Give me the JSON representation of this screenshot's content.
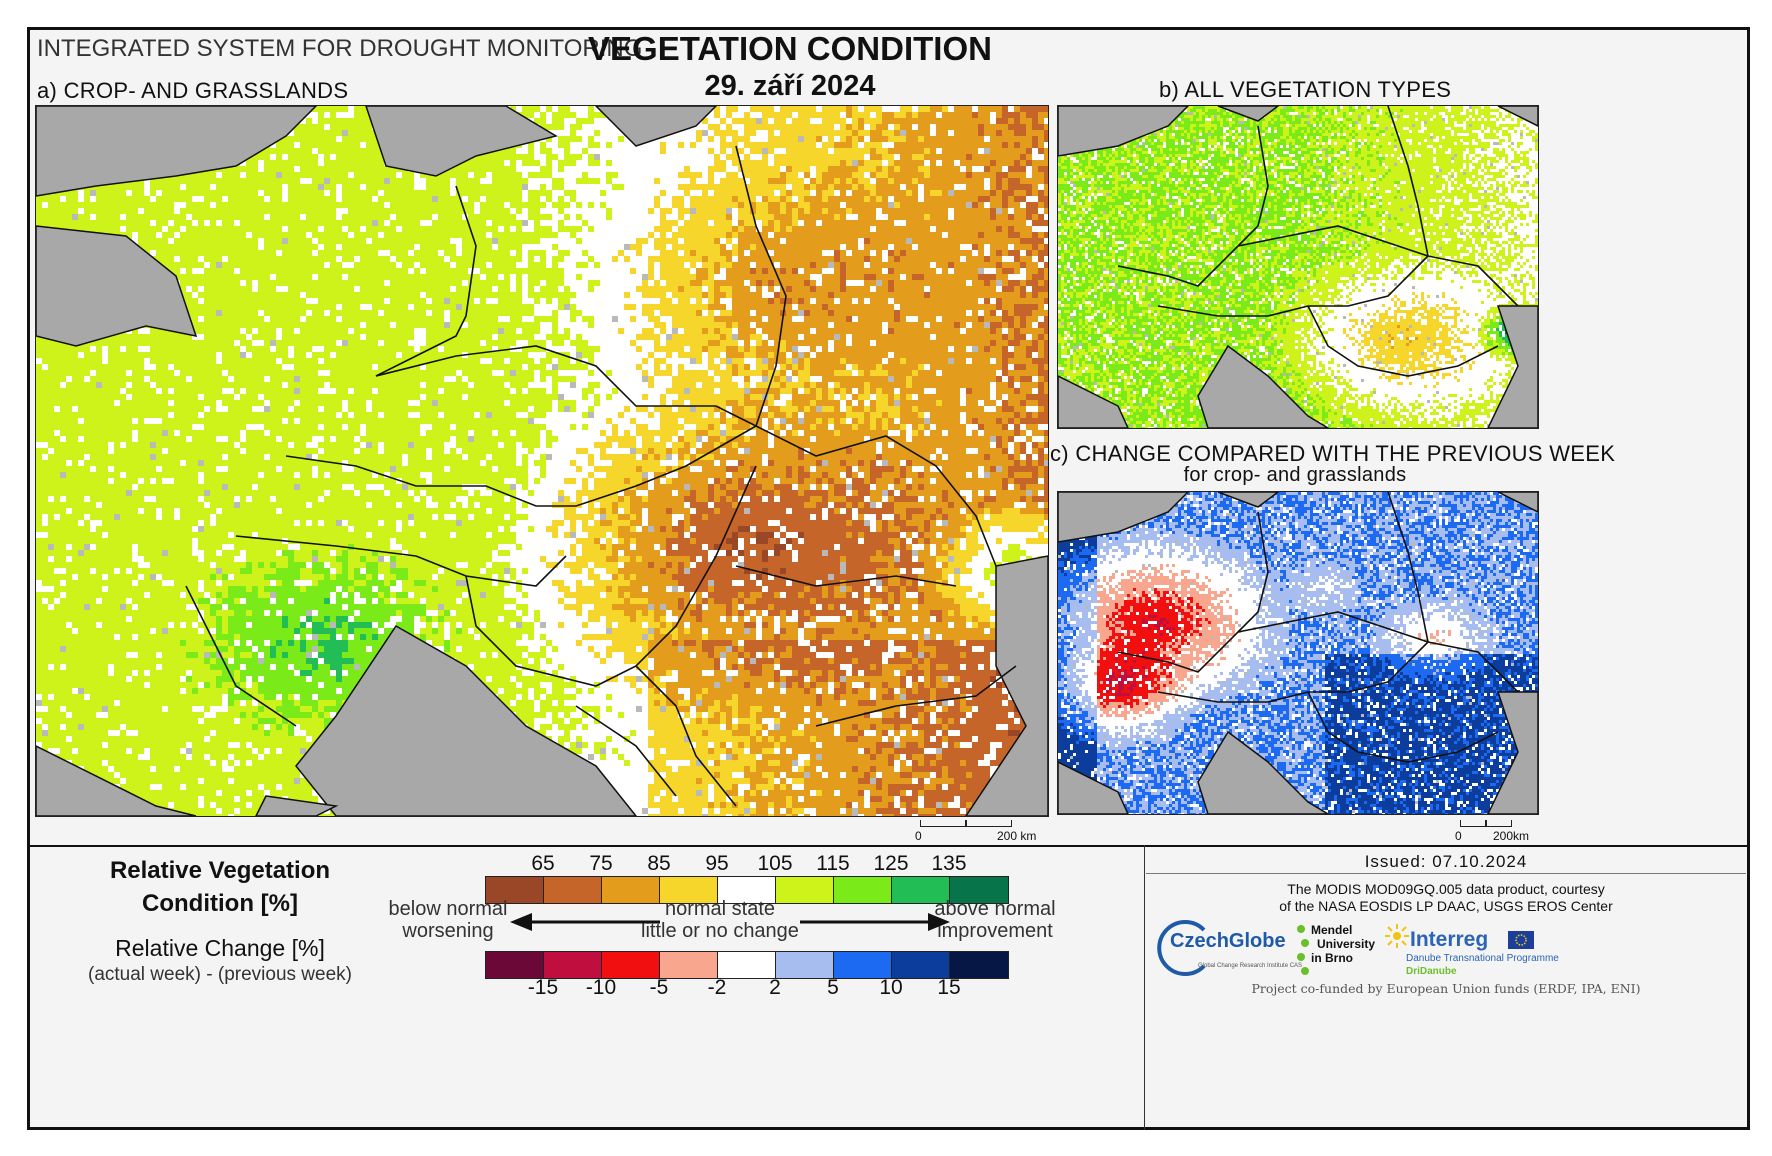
{
  "header": {
    "system_title": "INTEGRATED SYSTEM FOR DROUGHT MONITORING",
    "main_title": "VEGETATION CONDITION",
    "date": "29. září 2024"
  },
  "panels": {
    "a_label": "a) CROP- AND GRASSLANDS",
    "b_label": "b) ALL VEGETATION TYPES",
    "c_label": "c) CHANGE COMPARED WITH THE PREVIOUS WEEK",
    "c_sublabel": "for crop- and grasslands"
  },
  "scalebars": {
    "main": {
      "zero": "0",
      "end": "200 km"
    },
    "small": {
      "zero": "0",
      "end": "200km"
    }
  },
  "legend": {
    "rvc_title_1": "Relative Vegetation",
    "rvc_title_2": "Condition [%]",
    "rc_title": "Relative Change [%]",
    "rc_sub": "(actual week) - (previous week)",
    "rvc_ticks": [
      "65",
      "75",
      "85",
      "95",
      "105",
      "115",
      "125",
      "135"
    ],
    "rc_ticks": [
      "-15",
      "-10",
      "-5",
      "-2",
      "2",
      "5",
      "10",
      "15"
    ],
    "rvc_colors": [
      "#9a4727",
      "#c6652a",
      "#e49c1c",
      "#f6d62a",
      "#ffffff",
      "#cdf31a",
      "#7aeb18",
      "#22bd55",
      "#08744a"
    ],
    "rc_colors": [
      "#6b0838",
      "#c00f3e",
      "#f20f0f",
      "#f8a68e",
      "#ffffff",
      "#a7bdf0",
      "#1c69f2",
      "#0d3d9c",
      "#061645"
    ],
    "left_1": "below normal",
    "left_2": "worsening",
    "mid_1": "normal state",
    "mid_2": "little or no change",
    "right_1": "above normal",
    "right_2": "improvement"
  },
  "credits": {
    "issued": "Issued: 07.10.2024",
    "line1": "The MODIS MOD09GQ.005 data product, courtesy",
    "line2": "of the NASA EOSDIS LP DAAC, USGS EROS Center",
    "czechglobe": "CzechGlobe",
    "czechglobe_sub": "Global Change Research Institute CAS",
    "mendel_1": "Mendel",
    "mendel_2": "University",
    "mendel_3": "in Brno",
    "interreg": "Interreg",
    "interreg_sub": "Danube Transnational Programme",
    "interreg_sub2": "DriDanube",
    "funding": "Project co-funded by European Union funds (ERDF, IPA, ENI)"
  }
}
